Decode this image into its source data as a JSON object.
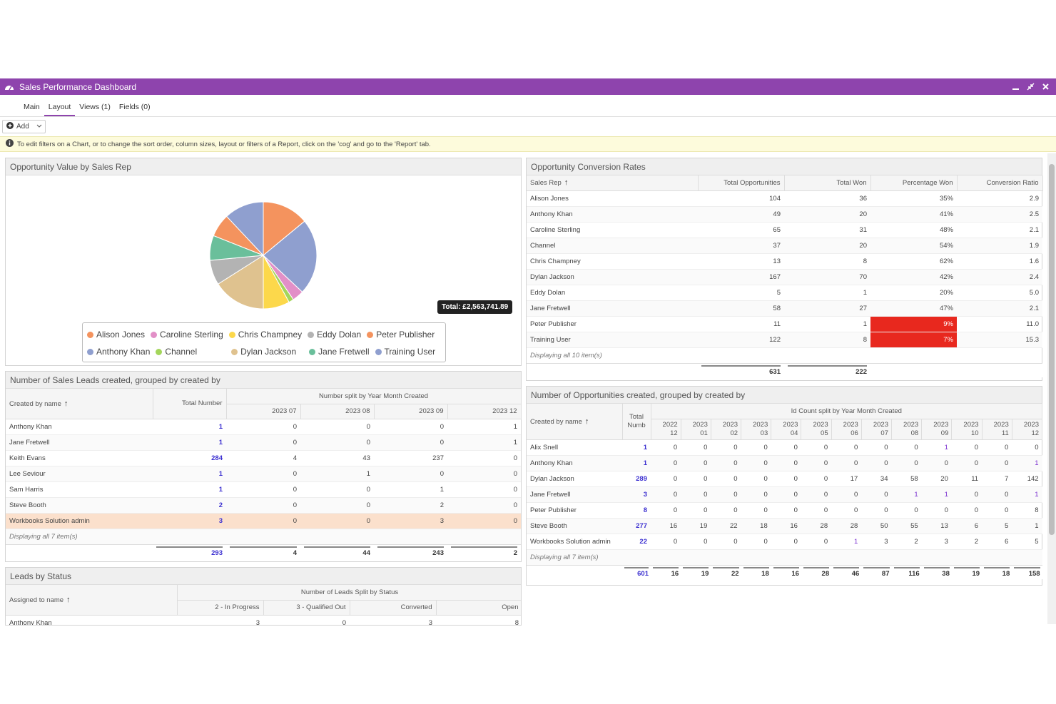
{
  "window": {
    "title": "Sales Performance Dashboard",
    "icon": "dashboard-icon"
  },
  "tabs": [
    "Main",
    "Layout",
    "Views (1)",
    "Fields (0)"
  ],
  "toolbar": {
    "add_label": "Add"
  },
  "info": {
    "text": "To edit filters on a Chart, or to change the sort order, column sizes, layout or filters of a Report, click on the 'cog' and go to the 'Report' tab."
  },
  "pie_panel": {
    "title": "Opportunity Value by Sales Rep",
    "tooltip": "Total: £2,563,741.89",
    "legend_row1": [
      "Alison Jones",
      "Caroline Sterling",
      "Chris Champney",
      "Eddy Dolan",
      "Peter Publisher"
    ],
    "legend_row2": [
      "Anthony Khan",
      "Channel",
      "Dylan Jackson",
      "Jane Fretwell",
      "Training User"
    ]
  },
  "chart_data": {
    "type": "pie",
    "categories": [
      "Alison Jones",
      "Anthony Khan",
      "Caroline Sterling",
      "Channel",
      "Chris Champney",
      "Dylan Jackson",
      "Eddy Dolan",
      "Jane Fretwell",
      "Peter Publisher",
      "Training User"
    ],
    "values": [
      7,
      23,
      3.5,
      1.5,
      8,
      16,
      7.5,
      7.5,
      14,
      12
    ],
    "colors": [
      "#f4935e",
      "#8f9fcf",
      "#e28fc7",
      "#a4d65b",
      "#fcd84b",
      "#dfc28f",
      "#b3b3b3",
      "#6abf9b",
      "#f4935e",
      "#8f9fcf"
    ],
    "total_label": "Total: £2,563,741.89"
  },
  "conversion": {
    "title": "Opportunity Conversion Rates",
    "headers": [
      "Sales Rep",
      "Total Opportunities",
      "Total Won",
      "Percentage Won",
      "Conversion Ratio"
    ],
    "rows": [
      [
        "Alison Jones",
        "104",
        "36",
        "35%",
        "2.9"
      ],
      [
        "Anthony Khan",
        "49",
        "20",
        "41%",
        "2.5"
      ],
      [
        "Caroline Sterling",
        "65",
        "31",
        "48%",
        "2.1"
      ],
      [
        "Channel",
        "37",
        "20",
        "54%",
        "1.9"
      ],
      [
        "Chris Champney",
        "13",
        "8",
        "62%",
        "1.6"
      ],
      [
        "Dylan Jackson",
        "167",
        "70",
        "42%",
        "2.4"
      ],
      [
        "Eddy Dolan",
        "5",
        "1",
        "20%",
        "5.0"
      ],
      [
        "Jane Fretwell",
        "58",
        "27",
        "47%",
        "2.1"
      ],
      [
        "Peter Publisher",
        "11",
        "1",
        "9%",
        "11.0"
      ],
      [
        "Training User",
        "122",
        "8",
        "7%",
        "15.3"
      ]
    ],
    "display": "Displaying all 10 item(s)",
    "totals": [
      "631",
      "222"
    ]
  },
  "leads": {
    "title": "Number of Sales Leads created, grouped by created by",
    "col_name": "Created by name",
    "col_total": "Total Number",
    "group_header": "Number split by Year Month Created",
    "months": [
      "2023 07",
      "2023 08",
      "2023 09",
      "2023 12"
    ],
    "rows": [
      [
        "Anthony Khan",
        "1",
        "0",
        "0",
        "0",
        "1"
      ],
      [
        "Jane Fretwell",
        "1",
        "0",
        "0",
        "0",
        "1"
      ],
      [
        "Keith Evans",
        "284",
        "4",
        "43",
        "237",
        "0"
      ],
      [
        "Lee Seviour",
        "1",
        "0",
        "1",
        "0",
        "0"
      ],
      [
        "Sam Harris",
        "1",
        "0",
        "0",
        "1",
        "0"
      ],
      [
        "Steve Booth",
        "2",
        "0",
        "0",
        "2",
        "0"
      ],
      [
        "Workbooks Solution admin",
        "3",
        "0",
        "0",
        "3",
        "0"
      ]
    ],
    "display": "Displaying all 7 item(s)",
    "totals": [
      "293",
      "4",
      "44",
      "243",
      "2"
    ]
  },
  "opps": {
    "title": "Number of Opportunities created, grouped by created by",
    "col_name": "Created by name",
    "col_total": "Total Numb",
    "group_header": "Id Count split by Year Month Created",
    "months": [
      [
        "2022",
        "12"
      ],
      [
        "2023",
        "01"
      ],
      [
        "2023",
        "02"
      ],
      [
        "2023",
        "03"
      ],
      [
        "2023",
        "04"
      ],
      [
        "2023",
        "05"
      ],
      [
        "2023",
        "06"
      ],
      [
        "2023",
        "07"
      ],
      [
        "2023",
        "08"
      ],
      [
        "2023",
        "09"
      ],
      [
        "2023",
        "10"
      ],
      [
        "2023",
        "11"
      ],
      [
        "2023",
        "12"
      ]
    ],
    "rows": [
      [
        "Alix Snell",
        "1",
        "0",
        "0",
        "0",
        "0",
        "0",
        "0",
        "0",
        "0",
        "0",
        "1",
        "0",
        "0",
        "0"
      ],
      [
        "Anthony Khan",
        "1",
        "0",
        "0",
        "0",
        "0",
        "0",
        "0",
        "0",
        "0",
        "0",
        "0",
        "0",
        "0",
        "1"
      ],
      [
        "Dylan Jackson",
        "289",
        "0",
        "0",
        "0",
        "0",
        "0",
        "0",
        "17",
        "34",
        "58",
        "20",
        "11",
        "7",
        "142"
      ],
      [
        "Jane Fretwell",
        "3",
        "0",
        "0",
        "0",
        "0",
        "0",
        "0",
        "0",
        "0",
        "1",
        "1",
        "0",
        "0",
        "1"
      ],
      [
        "Peter Publisher",
        "8",
        "0",
        "0",
        "0",
        "0",
        "0",
        "0",
        "0",
        "0",
        "0",
        "0",
        "0",
        "0",
        "8"
      ],
      [
        "Steve Booth",
        "277",
        "16",
        "19",
        "22",
        "18",
        "16",
        "28",
        "28",
        "50",
        "55",
        "13",
        "6",
        "5",
        "1"
      ],
      [
        "Workbooks Solution admin",
        "22",
        "0",
        "0",
        "0",
        "0",
        "0",
        "0",
        "1",
        "3",
        "2",
        "3",
        "2",
        "6",
        "5"
      ]
    ],
    "display": "Displaying all 7 item(s)",
    "totals": [
      "601",
      "16",
      "19",
      "22",
      "18",
      "16",
      "28",
      "46",
      "87",
      "116",
      "38",
      "19",
      "18",
      "158"
    ]
  },
  "status": {
    "title": "Leads by Status",
    "col_name": "Assigned to name",
    "group_header": "Number of Leads Split by Status",
    "statuses": [
      "2 - In Progress",
      "3 - Qualified Out",
      "Converted",
      "Open"
    ],
    "first_row": [
      "Anthony Khan",
      "3",
      "0",
      "3",
      "8"
    ]
  }
}
